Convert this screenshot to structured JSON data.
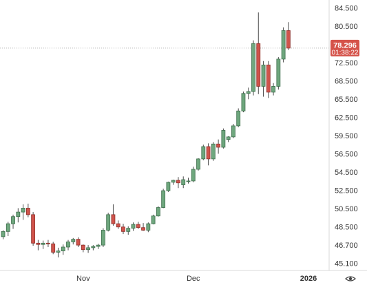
{
  "colors": {
    "up_fill": "#6fa77e",
    "up_border": "#3d6e4b",
    "down_fill": "#d0544c",
    "down_border": "#8e2f2a",
    "wick": "#4a4a4a",
    "price_badge": "#d5534a",
    "axis_text": "#333333",
    "border": "#d9d9d9",
    "price_line": "#b8b8b8"
  },
  "current_price": {
    "value": "78.296",
    "countdown": "01:38:22"
  },
  "eye_icon": "eye-icon",
  "chart_data": {
    "type": "candlestick",
    "ylim": [
      43.5,
      86.5
    ],
    "y_ticks": [
      "84.500",
      "80.500",
      "76.500",
      "72.500",
      "68.500",
      "65.500",
      "62.500",
      "59.500",
      "56.500",
      "54.500",
      "52.500",
      "50.500",
      "48.500",
      "46.700",
      "45.100"
    ],
    "x_labels": [
      {
        "label": "Nov",
        "index": 16
      },
      {
        "label": "Dec",
        "index": 38
      },
      {
        "label": "2026",
        "index": 61
      }
    ],
    "candles": [
      [
        49.2,
        50.2,
        48.8,
        50.0
      ],
      [
        50.0,
        51.5,
        49.3,
        51.2
      ],
      [
        51.2,
        52.6,
        50.4,
        52.3
      ],
      [
        52.3,
        53.6,
        51.4,
        53.0
      ],
      [
        53.0,
        54.2,
        51.8,
        53.6
      ],
      [
        53.6,
        54.3,
        52.2,
        52.6
      ],
      [
        52.6,
        53.0,
        47.8,
        48.2
      ],
      [
        48.2,
        48.7,
        47.1,
        48.0
      ],
      [
        48.0,
        48.6,
        47.3,
        48.2
      ],
      [
        48.2,
        48.7,
        47.6,
        48.1
      ],
      [
        48.1,
        48.4,
        46.5,
        46.8
      ],
      [
        46.8,
        47.5,
        46.0,
        47.0
      ],
      [
        47.0,
        48.0,
        46.4,
        47.6
      ],
      [
        47.6,
        48.7,
        47.1,
        48.4
      ],
      [
        48.4,
        49.0,
        48.0,
        48.8
      ],
      [
        48.8,
        49.1,
        47.6,
        47.9
      ],
      [
        47.9,
        48.0,
        46.8,
        47.2
      ],
      [
        47.2,
        47.9,
        46.7,
        47.5
      ],
      [
        47.5,
        47.9,
        47.1,
        47.7
      ],
      [
        47.7,
        48.1,
        47.3,
        47.9
      ],
      [
        47.9,
        50.5,
        47.6,
        50.2
      ],
      [
        50.2,
        52.9,
        50.0,
        52.6
      ],
      [
        52.6,
        54.2,
        50.9,
        51.2
      ],
      [
        51.2,
        51.7,
        50.4,
        50.7
      ],
      [
        50.7,
        51.2,
        49.6,
        50.0
      ],
      [
        50.0,
        50.8,
        49.5,
        50.5
      ],
      [
        50.5,
        51.4,
        50.1,
        51.1
      ],
      [
        51.1,
        51.5,
        50.4,
        50.6
      ],
      [
        50.6,
        51.3,
        50.1,
        50.2
      ],
      [
        50.2,
        51.4,
        49.9,
        51.2
      ],
      [
        51.2,
        52.6,
        51.1,
        52.4
      ],
      [
        52.4,
        53.9,
        52.3,
        53.7
      ],
      [
        53.7,
        56.6,
        53.6,
        56.3
      ],
      [
        56.3,
        57.7,
        56.1,
        57.6
      ],
      [
        57.6,
        58.0,
        57.2,
        57.9
      ],
      [
        57.9,
        58.4,
        56.7,
        57.5
      ],
      [
        57.2,
        58.5,
        56.7,
        58.0
      ],
      [
        57.7,
        58.3,
        57.4,
        57.8
      ],
      [
        57.8,
        60.0,
        57.6,
        59.6
      ],
      [
        59.6,
        61.3,
        59.4,
        61.2
      ],
      [
        61.2,
        63.4,
        61.0,
        63.1
      ],
      [
        63.1,
        63.6,
        60.2,
        61.2
      ],
      [
        61.2,
        63.8,
        60.9,
        63.5
      ],
      [
        63.5,
        64.2,
        62.0,
        63.0
      ],
      [
        63.0,
        65.9,
        62.8,
        65.6
      ],
      [
        64.2,
        64.7,
        63.8,
        64.6
      ],
      [
        64.6,
        66.6,
        64.4,
        66.3
      ],
      [
        66.3,
        69.0,
        66.1,
        68.6
      ],
      [
        68.6,
        71.6,
        68.4,
        71.3
      ],
      [
        71.3,
        72.2,
        70.4,
        71.6
      ],
      [
        71.6,
        79.5,
        71.0,
        79.0
      ],
      [
        79.0,
        83.8,
        71.2,
        72.4
      ],
      [
        72.4,
        76.3,
        70.8,
        75.7
      ],
      [
        75.7,
        76.3,
        70.6,
        71.5
      ],
      [
        71.5,
        72.9,
        71.0,
        72.4
      ],
      [
        72.4,
        76.9,
        71.9,
        76.6
      ],
      [
        76.6,
        81.5,
        76.1,
        81.0
      ],
      [
        81.0,
        82.3,
        78.0,
        78.3
      ]
    ]
  }
}
